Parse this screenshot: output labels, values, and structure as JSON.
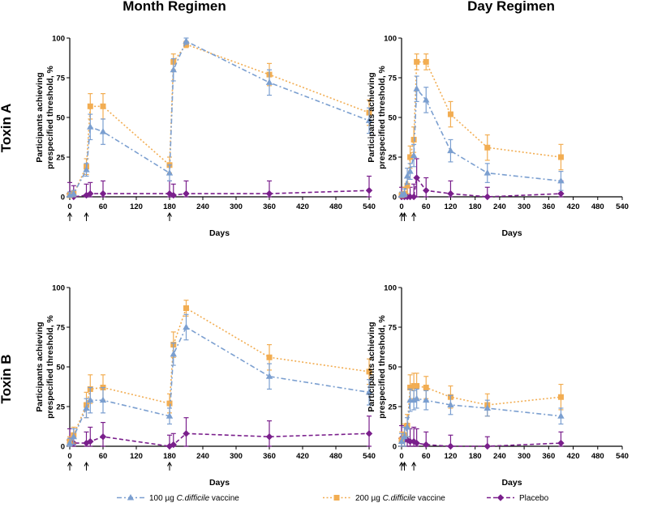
{
  "figure": {
    "col_titles": [
      "Month Regimen",
      "Day Regimen"
    ],
    "row_titles": [
      "Toxin A",
      "Toxin B"
    ],
    "ylabel_line1": "Participants achieving",
    "ylabel_line2": "prespecified threshold, %",
    "xlabel": "Days",
    "colors": {
      "v100": "#7b9fd0",
      "v200": "#f2ad52",
      "placebo": "#7a1f8c"
    }
  },
  "legend": [
    {
      "key": "v100",
      "prefix": "100 µg ",
      "italic": "C.difficile",
      "suffix": " vaccine",
      "marker": "triangle"
    },
    {
      "key": "v200",
      "prefix": "200 µg ",
      "italic": "C.difficile",
      "suffix": " vaccine",
      "marker": "square"
    },
    {
      "key": "placebo",
      "prefix": "Placebo",
      "italic": "",
      "suffix": "",
      "marker": "diamond"
    }
  ],
  "chart_data": [
    {
      "type": "line",
      "title": "Month Regimen – Toxin A",
      "xlabel": "Days",
      "ylabel": "Participants achieving prespecified threshold, %",
      "xlim": [
        0,
        540
      ],
      "ylim": [
        0,
        100
      ],
      "xticks": [
        0,
        60,
        120,
        180,
        240,
        300,
        360,
        420,
        480,
        540
      ],
      "yticks": [
        0,
        25,
        50,
        75,
        100
      ],
      "vaccination_days": [
        0,
        30,
        180
      ],
      "series": [
        {
          "name": "100 µg C.difficile vaccine",
          "key": "v100",
          "x": [
            0,
            7,
            30,
            37,
            60,
            180,
            187,
            210,
            360,
            540
          ],
          "y": [
            1,
            2,
            17,
            44,
            41,
            15,
            80,
            98,
            72,
            48
          ],
          "err": [
            2,
            2,
            4,
            8,
            8,
            5,
            7,
            2,
            8,
            8
          ]
        },
        {
          "name": "200 µg C.difficile vaccine",
          "key": "v200",
          "x": [
            0,
            7,
            30,
            37,
            60,
            180,
            187,
            210,
            360,
            540
          ],
          "y": [
            1,
            2,
            19,
            57,
            57,
            20,
            85,
            96,
            77,
            53
          ],
          "err": [
            2,
            2,
            5,
            8,
            8,
            5,
            5,
            2,
            7,
            8
          ]
        },
        {
          "name": "Placebo",
          "key": "placebo",
          "x": [
            0,
            7,
            30,
            37,
            60,
            180,
            187,
            210,
            360,
            540
          ],
          "y": [
            2,
            0,
            1,
            2,
            2,
            2,
            1,
            2,
            2,
            4
          ],
          "err": [
            7,
            7,
            7,
            7,
            8,
            8,
            7,
            8,
            8,
            9
          ]
        }
      ]
    },
    {
      "type": "line",
      "title": "Day Regimen – Toxin A",
      "xlabel": "Days",
      "ylabel": "Participants achieving prespecified threshold, %",
      "xlim": [
        0,
        540
      ],
      "ylim": [
        0,
        100
      ],
      "xticks": [
        0,
        60,
        120,
        180,
        240,
        300,
        360,
        420,
        480,
        540
      ],
      "yticks": [
        0,
        25,
        50,
        75,
        100
      ],
      "vaccination_days": [
        0,
        7,
        30
      ],
      "series": [
        {
          "name": "100 µg C.difficile vaccine",
          "key": "v100",
          "x": [
            0,
            7,
            14,
            21,
            30,
            37,
            60,
            120,
            210,
            390
          ],
          "y": [
            1,
            2,
            13,
            16,
            26,
            68,
            61,
            29,
            15,
            10
          ],
          "err": [
            2,
            3,
            5,
            5,
            7,
            8,
            8,
            7,
            6,
            6
          ]
        },
        {
          "name": "200 µg C.difficile vaccine",
          "key": "v200",
          "x": [
            0,
            7,
            14,
            21,
            30,
            37,
            60,
            120,
            210,
            390
          ],
          "y": [
            1,
            2,
            7,
            25,
            36,
            85,
            85,
            52,
            31,
            25
          ],
          "err": [
            2,
            4,
            5,
            7,
            8,
            5,
            5,
            8,
            8,
            8
          ]
        },
        {
          "name": "Placebo",
          "key": "placebo",
          "x": [
            0,
            7,
            14,
            21,
            30,
            37,
            60,
            120,
            210,
            390
          ],
          "y": [
            0,
            0,
            0,
            0,
            0,
            12,
            4,
            2,
            0,
            2
          ],
          "err": [
            6,
            6,
            6,
            6,
            8,
            12,
            8,
            8,
            6,
            8
          ]
        }
      ]
    },
    {
      "type": "line",
      "title": "Month Regimen – Toxin B",
      "xlabel": "Days",
      "ylabel": "Participants achieving prespecified threshold, %",
      "xlim": [
        0,
        540
      ],
      "ylim": [
        0,
        100
      ],
      "xticks": [
        0,
        60,
        120,
        180,
        240,
        300,
        360,
        420,
        480,
        540
      ],
      "yticks": [
        0,
        25,
        50,
        75,
        100
      ],
      "vaccination_days": [
        0,
        30,
        180
      ],
      "series": [
        {
          "name": "100 µg C.difficile vaccine",
          "key": "v100",
          "x": [
            0,
            7,
            30,
            37,
            60,
            180,
            187,
            210,
            360,
            540
          ],
          "y": [
            2,
            6,
            24,
            29,
            29,
            19,
            58,
            75,
            44,
            34
          ],
          "err": [
            3,
            5,
            6,
            8,
            8,
            5,
            7,
            8,
            8,
            8
          ]
        },
        {
          "name": "200 µg C.difficile vaccine",
          "key": "v200",
          "x": [
            0,
            7,
            30,
            37,
            60,
            180,
            187,
            210,
            360,
            540
          ],
          "y": [
            3,
            7,
            26,
            36,
            37,
            27,
            64,
            87,
            56,
            47
          ],
          "err": [
            3,
            5,
            8,
            9,
            8,
            6,
            8,
            5,
            8,
            8
          ]
        },
        {
          "name": "Placebo",
          "key": "placebo",
          "x": [
            0,
            7,
            30,
            37,
            60,
            180,
            187,
            210,
            360,
            540
          ],
          "y": [
            4,
            2,
            2,
            3,
            6,
            0,
            1,
            8,
            6,
            8
          ],
          "err": [
            7,
            6,
            7,
            9,
            9,
            7,
            7,
            10,
            10,
            11
          ]
        }
      ]
    },
    {
      "type": "line",
      "title": "Day Regimen – Toxin B",
      "xlabel": "Days",
      "ylabel": "Participants achieving prespecified threshold, %",
      "xlim": [
        0,
        540
      ],
      "ylim": [
        0,
        100
      ],
      "xticks": [
        0,
        60,
        120,
        180,
        240,
        300,
        360,
        420,
        480,
        540
      ],
      "yticks": [
        0,
        25,
        50,
        75,
        100
      ],
      "vaccination_days": [
        0,
        7,
        30
      ],
      "series": [
        {
          "name": "100 µg C.difficile vaccine",
          "key": "v100",
          "x": [
            0,
            7,
            14,
            21,
            30,
            37,
            60,
            120,
            210,
            390
          ],
          "y": [
            3,
            6,
            12,
            29,
            29,
            30,
            29,
            26,
            24,
            19
          ],
          "err": [
            5,
            6,
            6,
            7,
            6,
            6,
            6,
            6,
            5,
            5
          ]
        },
        {
          "name": "200 µg C.difficile vaccine",
          "key": "v200",
          "x": [
            0,
            7,
            14,
            21,
            30,
            37,
            60,
            120,
            210,
            390
          ],
          "y": [
            4,
            7,
            13,
            37,
            38,
            38,
            37,
            31,
            26,
            31
          ],
          "err": [
            5,
            7,
            7,
            8,
            8,
            8,
            7,
            7,
            7,
            8
          ]
        },
        {
          "name": "Placebo",
          "key": "placebo",
          "x": [
            0,
            7,
            14,
            21,
            30,
            37,
            60,
            120,
            210,
            390
          ],
          "y": [
            5,
            4,
            4,
            3,
            3,
            2,
            1,
            0,
            0,
            2
          ],
          "err": [
            8,
            8,
            8,
            8,
            9,
            9,
            8,
            7,
            6,
            7
          ]
        }
      ]
    }
  ]
}
